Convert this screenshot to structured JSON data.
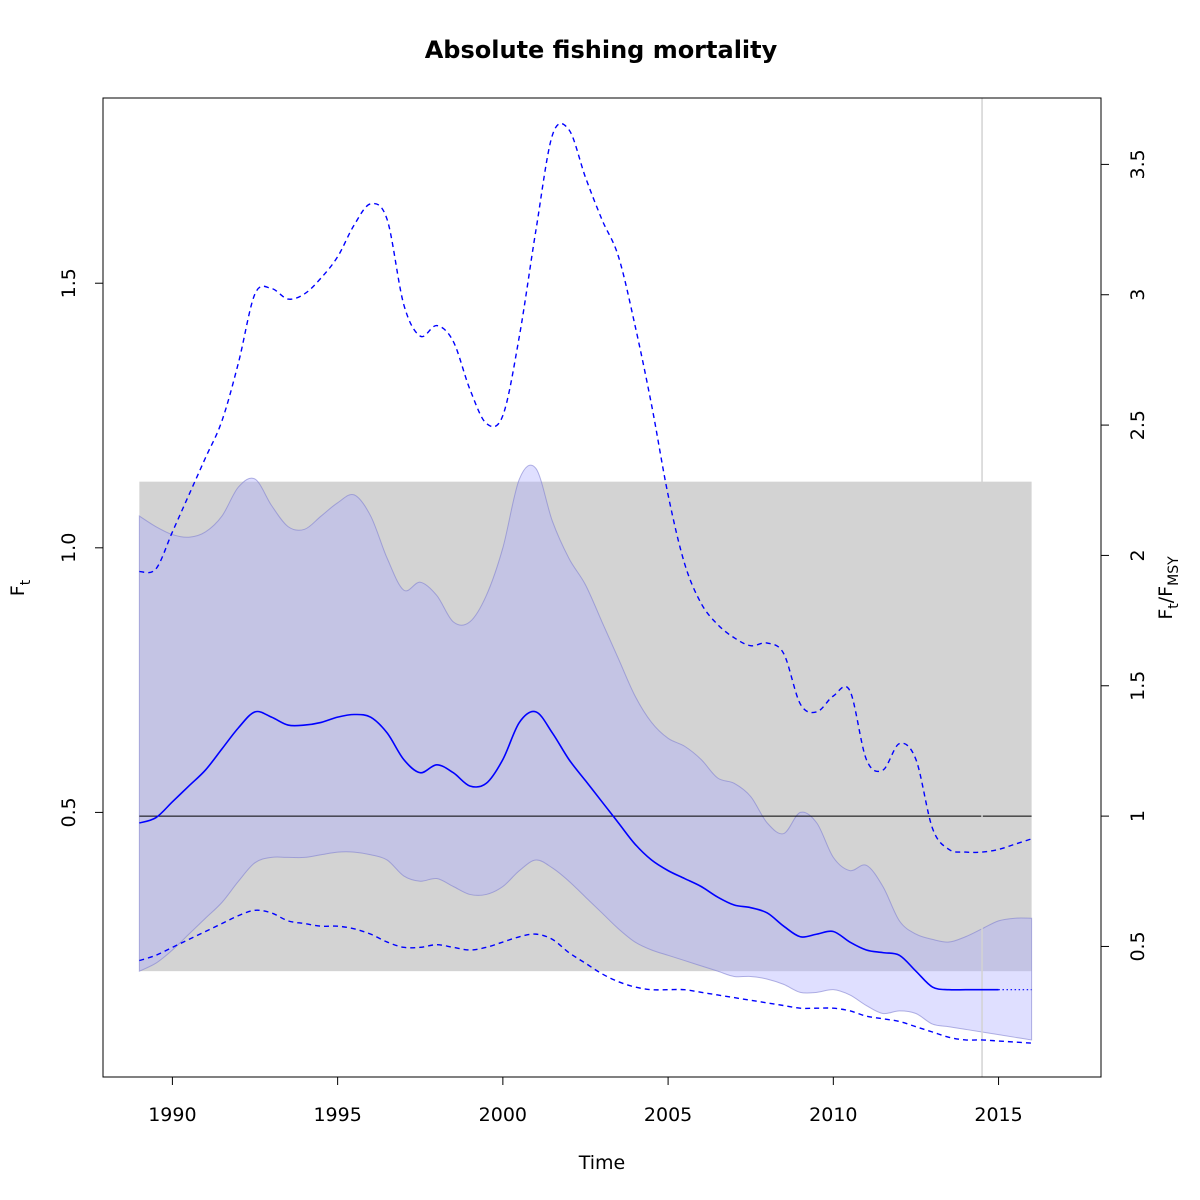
{
  "chart_data": {
    "type": "line",
    "title": "Absolute fishing mortality",
    "xlabel": "Time",
    "ylabel": {
      "main": "F",
      "sub": "t"
    },
    "y2label": {
      "main1": "F",
      "sub1": "t",
      "sep": "/",
      "main2": "F",
      "sub2": "MSY"
    },
    "xlim": [
      1987.9,
      2018.1
    ],
    "ylim": [
      0.0,
      1.85
    ],
    "y2_per_unit": 2.03,
    "xticks": [
      1990,
      1995,
      2000,
      2005,
      2010,
      2015
    ],
    "xtick_labels": [
      "1990",
      "1995",
      "2000",
      "2005",
      "2010",
      "2015"
    ],
    "yticks": [
      0.5,
      1.0,
      1.5
    ],
    "ytick_labels": [
      "0.5",
      "1.0",
      "1.5"
    ],
    "y2ticks": [
      0.5,
      1,
      1.5,
      2,
      2.5,
      3,
      3.5
    ],
    "y2tick_labels": [
      "0.5",
      "1",
      "1.5",
      "2",
      "2.5",
      "3",
      "3.5"
    ],
    "fmsy": 0.493,
    "fmsy_ci": [
      0.2,
      1.125
    ],
    "forecast_start": 2014.5,
    "colors": {
      "estimate": "#0000ff",
      "ci_band": "#b0b0ff",
      "fmsy_band": "#d3d3d3",
      "fmsy_line": "#000000",
      "vline": "#d3d3d3"
    },
    "series": [
      {
        "role": "estimate",
        "style": "solid",
        "x": [
          1989,
          1989.5,
          1990,
          1990.5,
          1991,
          1991.5,
          1992,
          1992.5,
          1993,
          1993.5,
          1994,
          1994.5,
          1995,
          1995.5,
          1996,
          1996.5,
          1997,
          1997.5,
          1998,
          1998.5,
          1999,
          1999.5,
          2000,
          2000.5,
          2001,
          2001.5,
          2002,
          2002.5,
          2003,
          2003.5,
          2004,
          2004.5,
          2005,
          2005.5,
          2006,
          2006.5,
          2007,
          2007.5,
          2008,
          2008.5,
          2009,
          2009.5,
          2010,
          2010.5,
          2011,
          2011.5,
          2012,
          2012.5,
          2013,
          2013.5,
          2014,
          2014.5,
          2015
        ],
        "y": [
          0.48,
          0.49,
          0.52,
          0.55,
          0.58,
          0.62,
          0.66,
          0.69,
          0.68,
          0.665,
          0.665,
          0.67,
          0.68,
          0.685,
          0.68,
          0.65,
          0.6,
          0.575,
          0.59,
          0.575,
          0.55,
          0.555,
          0.6,
          0.67,
          0.69,
          0.65,
          0.6,
          0.56,
          0.52,
          0.48,
          0.44,
          0.41,
          0.39,
          0.375,
          0.36,
          0.34,
          0.325,
          0.32,
          0.31,
          0.285,
          0.265,
          0.27,
          0.275,
          0.255,
          0.24,
          0.235,
          0.23,
          0.2,
          0.17,
          0.165,
          0.165,
          0.165,
          0.165
        ]
      },
      {
        "role": "forecast",
        "style": "dotted",
        "x": [
          2015,
          2016
        ],
        "y": [
          0.165,
          0.165
        ]
      },
      {
        "role": "lower_95ci",
        "style": "band",
        "x": [
          1989,
          1989.5,
          1990,
          1990.5,
          1991,
          1991.5,
          1992,
          1992.5,
          1993,
          1993.5,
          1994,
          1994.5,
          1995,
          1995.5,
          1996,
          1996.5,
          1997,
          1997.5,
          1998,
          1998.5,
          1999,
          1999.5,
          2000,
          2000.5,
          2001,
          2001.5,
          2002,
          2002.5,
          2003,
          2003.5,
          2004,
          2004.5,
          2005,
          2005.5,
          2006,
          2006.5,
          2007,
          2007.5,
          2008,
          2008.5,
          2009,
          2009.5,
          2010,
          2010.5,
          2011,
          2011.5,
          2012,
          2012.5,
          2013,
          2013.5,
          2014,
          2014.5,
          2015,
          2015.5,
          2016
        ],
        "y": [
          0.2,
          0.215,
          0.24,
          0.27,
          0.3,
          0.33,
          0.37,
          0.405,
          0.415,
          0.415,
          0.415,
          0.42,
          0.425,
          0.425,
          0.42,
          0.41,
          0.38,
          0.37,
          0.375,
          0.36,
          0.345,
          0.345,
          0.36,
          0.39,
          0.41,
          0.395,
          0.37,
          0.34,
          0.31,
          0.28,
          0.255,
          0.24,
          0.23,
          0.22,
          0.21,
          0.2,
          0.19,
          0.19,
          0.185,
          0.175,
          0.16,
          0.16,
          0.165,
          0.155,
          0.135,
          0.12,
          0.125,
          0.12,
          0.1,
          0.095,
          0.09,
          0.085,
          0.08,
          0.075,
          0.07
        ]
      },
      {
        "role": "upper_95ci",
        "style": "band",
        "x": [
          1989,
          1989.5,
          1990,
          1990.5,
          1991,
          1991.5,
          1992,
          1992.5,
          1993,
          1993.5,
          1994,
          1994.5,
          1995,
          1995.5,
          1996,
          1996.5,
          1997,
          1997.5,
          1998,
          1998.5,
          1999,
          1999.5,
          2000,
          2000.5,
          2001,
          2001.5,
          2002,
          2002.5,
          2003,
          2003.5,
          2004,
          2004.5,
          2005,
          2005.5,
          2006,
          2006.5,
          2007,
          2007.5,
          2008,
          2008.5,
          2009,
          2009.5,
          2010,
          2010.5,
          2011,
          2011.5,
          2012,
          2012.5,
          2013,
          2013.5,
          2014,
          2014.5,
          2015,
          2015.5,
          2016
        ],
        "y": [
          1.06,
          1.04,
          1.025,
          1.02,
          1.03,
          1.06,
          1.115,
          1.13,
          1.08,
          1.04,
          1.035,
          1.06,
          1.085,
          1.1,
          1.06,
          0.98,
          0.92,
          0.935,
          0.91,
          0.86,
          0.86,
          0.91,
          1.0,
          1.13,
          1.15,
          1.05,
          0.98,
          0.93,
          0.86,
          0.79,
          0.72,
          0.67,
          0.64,
          0.625,
          0.6,
          0.565,
          0.555,
          0.53,
          0.48,
          0.46,
          0.5,
          0.48,
          0.415,
          0.39,
          0.4,
          0.36,
          0.295,
          0.27,
          0.26,
          0.255,
          0.265,
          0.28,
          0.295,
          0.3,
          0.3
        ]
      },
      {
        "role": "lower_bound",
        "style": "dashed",
        "x": [
          1989,
          1989.5,
          1990,
          1990.5,
          1991,
          1991.5,
          1992,
          1992.5,
          1993,
          1993.5,
          1994,
          1994.5,
          1995,
          1995.5,
          1996,
          1996.5,
          1997,
          1997.5,
          1998,
          1998.5,
          1999,
          1999.5,
          2000,
          2000.5,
          2001,
          2001.5,
          2002,
          2002.5,
          2003,
          2003.5,
          2004,
          2004.5,
          2005,
          2005.5,
          2006,
          2006.5,
          2007,
          2007.5,
          2008,
          2008.5,
          2009,
          2009.5,
          2010,
          2010.5,
          2011,
          2011.5,
          2012,
          2012.5,
          2013,
          2013.5,
          2014,
          2014.5,
          2015,
          2015.5,
          2016
        ],
        "y": [
          0.22,
          0.23,
          0.245,
          0.26,
          0.275,
          0.29,
          0.305,
          0.315,
          0.31,
          0.295,
          0.29,
          0.285,
          0.285,
          0.28,
          0.27,
          0.255,
          0.245,
          0.245,
          0.25,
          0.245,
          0.24,
          0.245,
          0.255,
          0.265,
          0.27,
          0.26,
          0.235,
          0.215,
          0.195,
          0.18,
          0.17,
          0.165,
          0.165,
          0.165,
          0.16,
          0.155,
          0.15,
          0.145,
          0.14,
          0.135,
          0.13,
          0.13,
          0.13,
          0.125,
          0.115,
          0.11,
          0.105,
          0.095,
          0.085,
          0.075,
          0.07,
          0.07,
          0.068,
          0.066,
          0.064
        ]
      },
      {
        "role": "upper_bound",
        "style": "dashed",
        "x": [
          1989,
          1989.5,
          1990,
          1990.5,
          1991,
          1991.5,
          1992,
          1992.5,
          1993,
          1993.5,
          1994,
          1994.5,
          1995,
          1995.5,
          1996,
          1996.5,
          1997,
          1997.5,
          1998,
          1998.5,
          1999,
          1999.5,
          2000,
          2000.5,
          2001,
          2001.5,
          2002,
          2002.5,
          2003,
          2003.5,
          2004,
          2004.5,
          2005,
          2005.5,
          2006,
          2006.5,
          2007,
          2007.5,
          2008,
          2008.5,
          2009,
          2009.5,
          2010,
          2010.5,
          2011,
          2011.5,
          2012,
          2012.5,
          2013,
          2013.5,
          2014,
          2014.5,
          2015,
          2015.5,
          2016
        ],
        "y": [
          0.955,
          0.96,
          1.03,
          1.1,
          1.17,
          1.24,
          1.35,
          1.48,
          1.49,
          1.47,
          1.48,
          1.51,
          1.55,
          1.61,
          1.65,
          1.62,
          1.46,
          1.4,
          1.42,
          1.39,
          1.3,
          1.235,
          1.25,
          1.4,
          1.6,
          1.78,
          1.79,
          1.7,
          1.62,
          1.55,
          1.42,
          1.27,
          1.1,
          0.97,
          0.895,
          0.855,
          0.83,
          0.815,
          0.82,
          0.8,
          0.705,
          0.69,
          0.72,
          0.73,
          0.6,
          0.58,
          0.63,
          0.6,
          0.47,
          0.43,
          0.425,
          0.425,
          0.43,
          0.44,
          0.45
        ]
      }
    ]
  }
}
